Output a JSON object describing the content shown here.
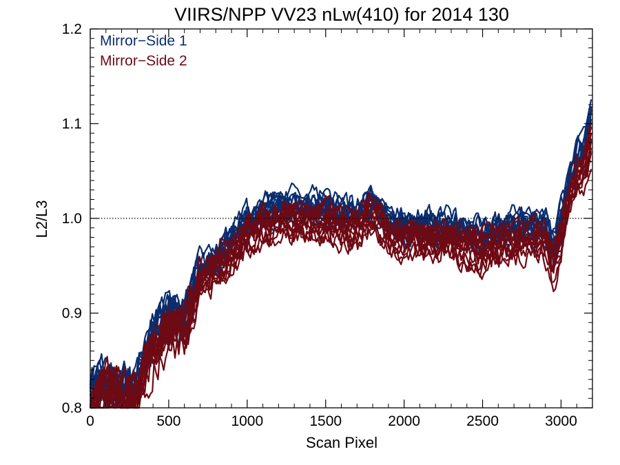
{
  "chart_data": {
    "type": "line",
    "title": "VIIRS/NPP VV23 nLw(410) for 2014 130",
    "xlabel": "Scan Pixel",
    "ylabel": "L2/L3",
    "xlim": [
      0,
      3200
    ],
    "ylim": [
      0.8,
      1.2
    ],
    "xticks": [
      0,
      500,
      1000,
      1500,
      2000,
      2500,
      3000
    ],
    "xtick_labels": [
      "0",
      "500",
      "1000",
      "1500",
      "2000",
      "2500",
      "3000"
    ],
    "yticks": [
      0.8,
      0.9,
      1.0,
      1.1,
      1.2
    ],
    "ytick_labels": [
      "0.8",
      "0.9",
      "1.0",
      "1.1",
      "1.2"
    ],
    "reference_line": {
      "y": 1.0,
      "style": "dotted"
    },
    "grid": false,
    "legend_position": "top-left",
    "series": [
      {
        "name": "Mirror−Side 1",
        "color": "#0a2d6e",
        "curves": 12,
        "x": [
          0,
          100,
          200,
          300,
          400,
          500,
          600,
          700,
          800,
          900,
          1000,
          1100,
          1200,
          1300,
          1400,
          1500,
          1600,
          1700,
          1800,
          1900,
          2000,
          2100,
          2200,
          2300,
          2400,
          2500,
          2600,
          2700,
          2800,
          2900,
          2950,
          3000,
          3050,
          3100,
          3150,
          3200
        ],
        "y": [
          0.82,
          0.83,
          0.82,
          0.83,
          0.88,
          0.9,
          0.9,
          0.95,
          0.96,
          0.98,
          1.0,
          1.01,
          1.015,
          1.015,
          1.015,
          1.015,
          1.01,
          1.01,
          1.02,
          1.0,
          0.995,
          0.995,
          0.995,
          0.995,
          0.99,
          0.985,
          0.99,
          0.995,
          0.995,
          0.995,
          0.97,
          1.005,
          1.04,
          1.07,
          1.08,
          1.12
        ]
      },
      {
        "name": "Mirror−Side 2",
        "color": "#6e0a14",
        "curves": 12,
        "x": [
          0,
          100,
          200,
          300,
          400,
          500,
          600,
          700,
          800,
          900,
          1000,
          1100,
          1200,
          1300,
          1400,
          1500,
          1600,
          1700,
          1800,
          1900,
          2000,
          2100,
          2200,
          2300,
          2400,
          2500,
          2600,
          2700,
          2800,
          2900,
          2950,
          3000,
          3050,
          3100,
          3150,
          3200
        ],
        "y": [
          0.8,
          0.82,
          0.81,
          0.81,
          0.86,
          0.88,
          0.88,
          0.93,
          0.945,
          0.96,
          0.98,
          0.99,
          0.995,
          0.995,
          0.995,
          0.995,
          0.99,
          0.985,
          1.005,
          0.98,
          0.975,
          0.975,
          0.975,
          0.975,
          0.97,
          0.965,
          0.97,
          0.975,
          0.975,
          0.975,
          0.945,
          0.975,
          1.02,
          1.04,
          1.05,
          1.08
        ]
      }
    ]
  }
}
